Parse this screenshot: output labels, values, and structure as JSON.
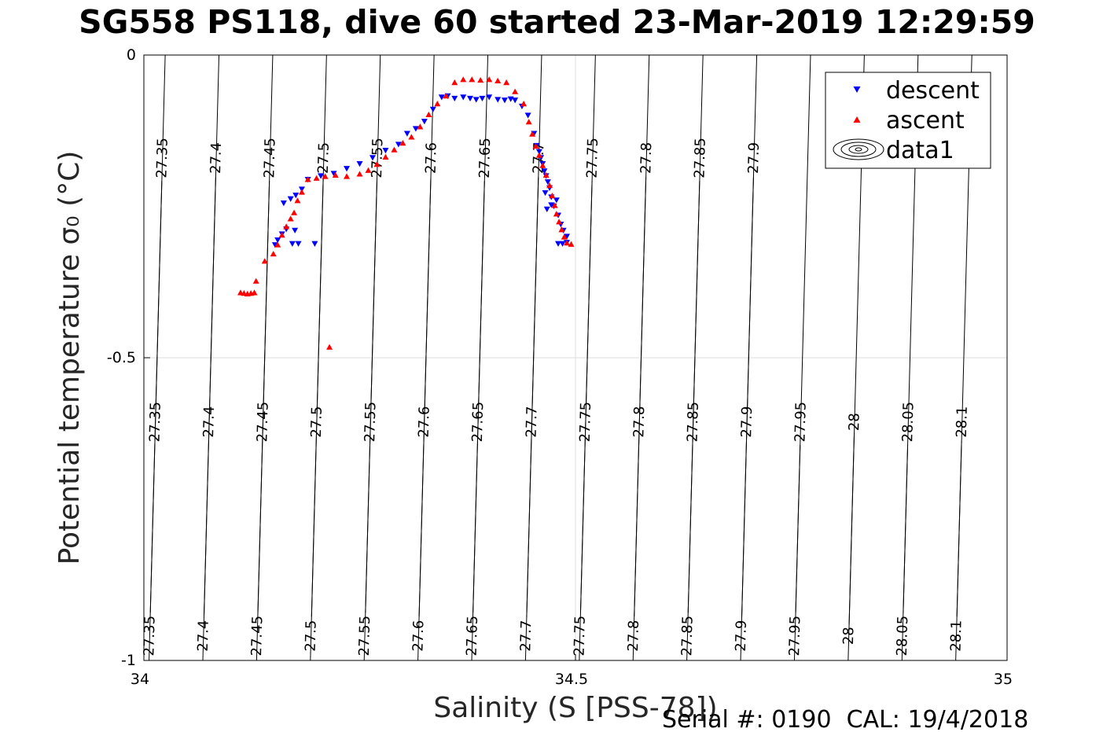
{
  "title": "SG558 PS118, dive 60 started 23-Mar-2019 12:29:59",
  "footer": "Serial #: 0190  CAL: 19/4/2018",
  "chart_data": {
    "type": "scatter",
    "xlabel": "Salinity (S [PSS-78])",
    "ylabel": "Potential temperature σ₀ (°C)",
    "xlim": [
      34,
      35
    ],
    "ylim": [
      -1,
      0
    ],
    "xticks": [
      "34",
      "34.5",
      "35"
    ],
    "yticks": [
      "-1",
      "-0.5",
      "0"
    ],
    "grid": true,
    "legend_position": "top-right",
    "legend": [
      "descent",
      "ascent",
      "data1"
    ],
    "contour_levels": [
      "27.35",
      "27.4",
      "27.45",
      "27.5",
      "27.55",
      "27.6",
      "27.65",
      "27.7",
      "27.75",
      "27.8",
      "27.85",
      "27.9",
      "27.95",
      "28",
      "28.05",
      "28.1"
    ],
    "series": [
      {
        "name": "descent",
        "color": "#0000ff",
        "marker": "triangle-down",
        "points": [
          [
            34.152,
            -0.314
          ],
          [
            34.155,
            -0.306
          ],
          [
            34.16,
            -0.296
          ],
          [
            34.165,
            -0.288
          ],
          [
            34.175,
            -0.29
          ],
          [
            34.172,
            -0.312
          ],
          [
            34.179,
            -0.312
          ],
          [
            34.198,
            -0.312
          ],
          [
            34.162,
            -0.245
          ],
          [
            34.17,
            -0.238
          ],
          [
            34.176,
            -0.232
          ],
          [
            34.183,
            -0.222
          ],
          [
            34.19,
            -0.206
          ],
          [
            34.205,
            -0.2
          ],
          [
            34.22,
            -0.196
          ],
          [
            34.235,
            -0.188
          ],
          [
            34.25,
            -0.18
          ],
          [
            34.265,
            -0.17
          ],
          [
            34.28,
            -0.158
          ],
          [
            34.295,
            -0.148
          ],
          [
            34.305,
            -0.13
          ],
          [
            34.315,
            -0.122
          ],
          [
            34.325,
            -0.11
          ],
          [
            34.335,
            -0.09
          ],
          [
            34.345,
            -0.07
          ],
          [
            34.352,
            -0.068
          ],
          [
            34.36,
            -0.072
          ],
          [
            34.37,
            -0.07
          ],
          [
            34.378,
            -0.072
          ],
          [
            34.385,
            -0.074
          ],
          [
            34.392,
            -0.072
          ],
          [
            34.4,
            -0.07
          ],
          [
            34.41,
            -0.074
          ],
          [
            34.418,
            -0.075
          ],
          [
            34.425,
            -0.073
          ],
          [
            34.43,
            -0.075
          ],
          [
            34.438,
            -0.085
          ],
          [
            34.445,
            -0.1
          ],
          [
            34.452,
            -0.13
          ],
          [
            34.455,
            -0.15
          ],
          [
            34.458,
            -0.16
          ],
          [
            34.46,
            -0.17
          ],
          [
            34.462,
            -0.18
          ],
          [
            34.464,
            -0.192
          ],
          [
            34.466,
            -0.2
          ],
          [
            34.468,
            -0.21
          ],
          [
            34.47,
            -0.22
          ],
          [
            34.472,
            -0.235
          ],
          [
            34.475,
            -0.25
          ],
          [
            34.48,
            -0.265
          ],
          [
            34.483,
            -0.28
          ],
          [
            34.486,
            -0.29
          ],
          [
            34.49,
            -0.3
          ],
          [
            34.49,
            -0.31
          ],
          [
            34.485,
            -0.312
          ],
          [
            34.48,
            -0.312
          ],
          [
            34.478,
            -0.24
          ],
          [
            34.472,
            -0.248
          ],
          [
            34.467,
            -0.255
          ],
          [
            34.465,
            -0.228
          ]
        ]
      },
      {
        "name": "ascent",
        "color": "#ff0000",
        "marker": "triangle-up",
        "points": [
          [
            34.112,
            -0.392
          ],
          [
            34.116,
            -0.393
          ],
          [
            34.12,
            -0.394
          ],
          [
            34.124,
            -0.393
          ],
          [
            34.128,
            -0.392
          ],
          [
            34.13,
            -0.373
          ],
          [
            34.14,
            -0.34
          ],
          [
            34.15,
            -0.328
          ],
          [
            34.155,
            -0.313
          ],
          [
            34.16,
            -0.297
          ],
          [
            34.165,
            -0.283
          ],
          [
            34.17,
            -0.27
          ],
          [
            34.174,
            -0.26
          ],
          [
            34.178,
            -0.24
          ],
          [
            34.183,
            -0.226
          ],
          [
            34.19,
            -0.205
          ],
          [
            34.2,
            -0.203
          ],
          [
            34.21,
            -0.2
          ],
          [
            34.222,
            -0.198
          ],
          [
            34.235,
            -0.2
          ],
          [
            34.25,
            -0.196
          ],
          [
            34.26,
            -0.19
          ],
          [
            34.27,
            -0.18
          ],
          [
            34.28,
            -0.168
          ],
          [
            34.29,
            -0.156
          ],
          [
            34.3,
            -0.145
          ],
          [
            34.31,
            -0.135
          ],
          [
            34.32,
            -0.118
          ],
          [
            34.33,
            -0.098
          ],
          [
            34.34,
            -0.08
          ],
          [
            34.35,
            -0.067
          ],
          [
            34.36,
            -0.045
          ],
          [
            34.37,
            -0.04
          ],
          [
            34.38,
            -0.04
          ],
          [
            34.39,
            -0.041
          ],
          [
            34.4,
            -0.04
          ],
          [
            34.41,
            -0.042
          ],
          [
            34.42,
            -0.045
          ],
          [
            34.43,
            -0.06
          ],
          [
            34.44,
            -0.08
          ],
          [
            34.446,
            -0.11
          ],
          [
            34.45,
            -0.13
          ],
          [
            34.454,
            -0.15
          ],
          [
            34.458,
            -0.165
          ],
          [
            34.462,
            -0.182
          ],
          [
            34.466,
            -0.198
          ],
          [
            34.47,
            -0.215
          ],
          [
            34.473,
            -0.232
          ],
          [
            34.476,
            -0.248
          ],
          [
            34.478,
            -0.262
          ],
          [
            34.481,
            -0.275
          ],
          [
            34.484,
            -0.288
          ],
          [
            34.487,
            -0.3
          ],
          [
            34.49,
            -0.31
          ],
          [
            34.495,
            -0.312
          ],
          [
            34.215,
            -0.482
          ]
        ]
      }
    ]
  }
}
